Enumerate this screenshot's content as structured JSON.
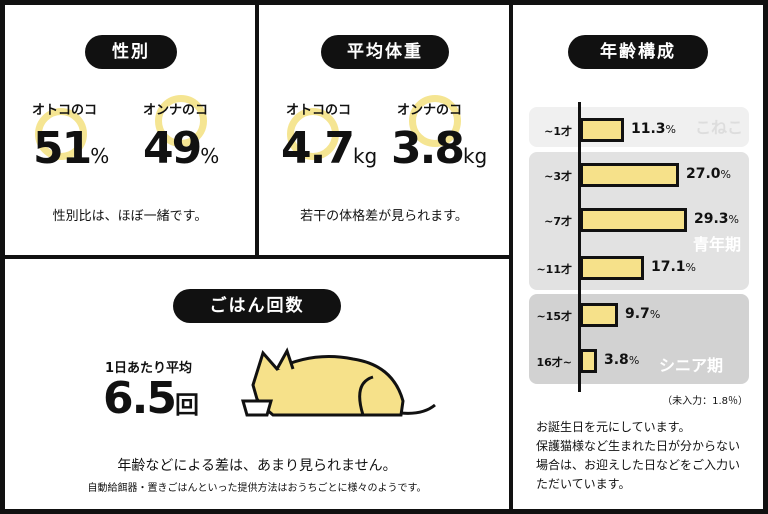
{
  "sex": {
    "title": "性別",
    "male_label": "オトコのコ",
    "male_value": "51",
    "female_label": "オンナのコ",
    "female_value": "49",
    "unit": "%",
    "note": "性別比は、ほぼ一緒です。"
  },
  "weight": {
    "title": "平均体重",
    "male_label": "オトコのコ",
    "male_value": "4.7",
    "female_label": "オンナのコ",
    "female_value": "3.8",
    "unit": "kg",
    "note": "若干の体格差が見られます。"
  },
  "meals": {
    "title": "ごはん回数",
    "avg_label": "1日あたり平均",
    "value": "6.5",
    "unit": "回",
    "note": "年齢などによる差は、あまり見られません。",
    "sub_note": "自動給餌器・置きごはんといった提供方法はおうちごとに様々のようです。"
  },
  "age": {
    "title": "年齢構成",
    "groups": [
      {
        "label": "こねこ"
      },
      {
        "label": "青年期"
      },
      {
        "label": "シニア期"
      }
    ],
    "bars": [
      {
        "label": "~1才",
        "value": 11.3,
        "text": "11.3"
      },
      {
        "label": "~3才",
        "value": 27.0,
        "text": "27.0"
      },
      {
        "label": "~7才",
        "value": 29.3,
        "text": "29.3"
      },
      {
        "label": "~11才",
        "value": 17.1,
        "text": "17.1"
      },
      {
        "label": "~15才",
        "value": 9.7,
        "text": "9.7"
      },
      {
        "label": "16才~",
        "value": 3.8,
        "text": "3.8"
      }
    ],
    "unit": "%",
    "missing": "（未入力：1.8％）",
    "note": "お誕生日を元にしています。\n保護猫様など生まれた日が分からない場合は、お迎えした日などをご入力いただいています。"
  },
  "colors": {
    "accent": "#f6e18a",
    "ink": "#111111"
  }
}
